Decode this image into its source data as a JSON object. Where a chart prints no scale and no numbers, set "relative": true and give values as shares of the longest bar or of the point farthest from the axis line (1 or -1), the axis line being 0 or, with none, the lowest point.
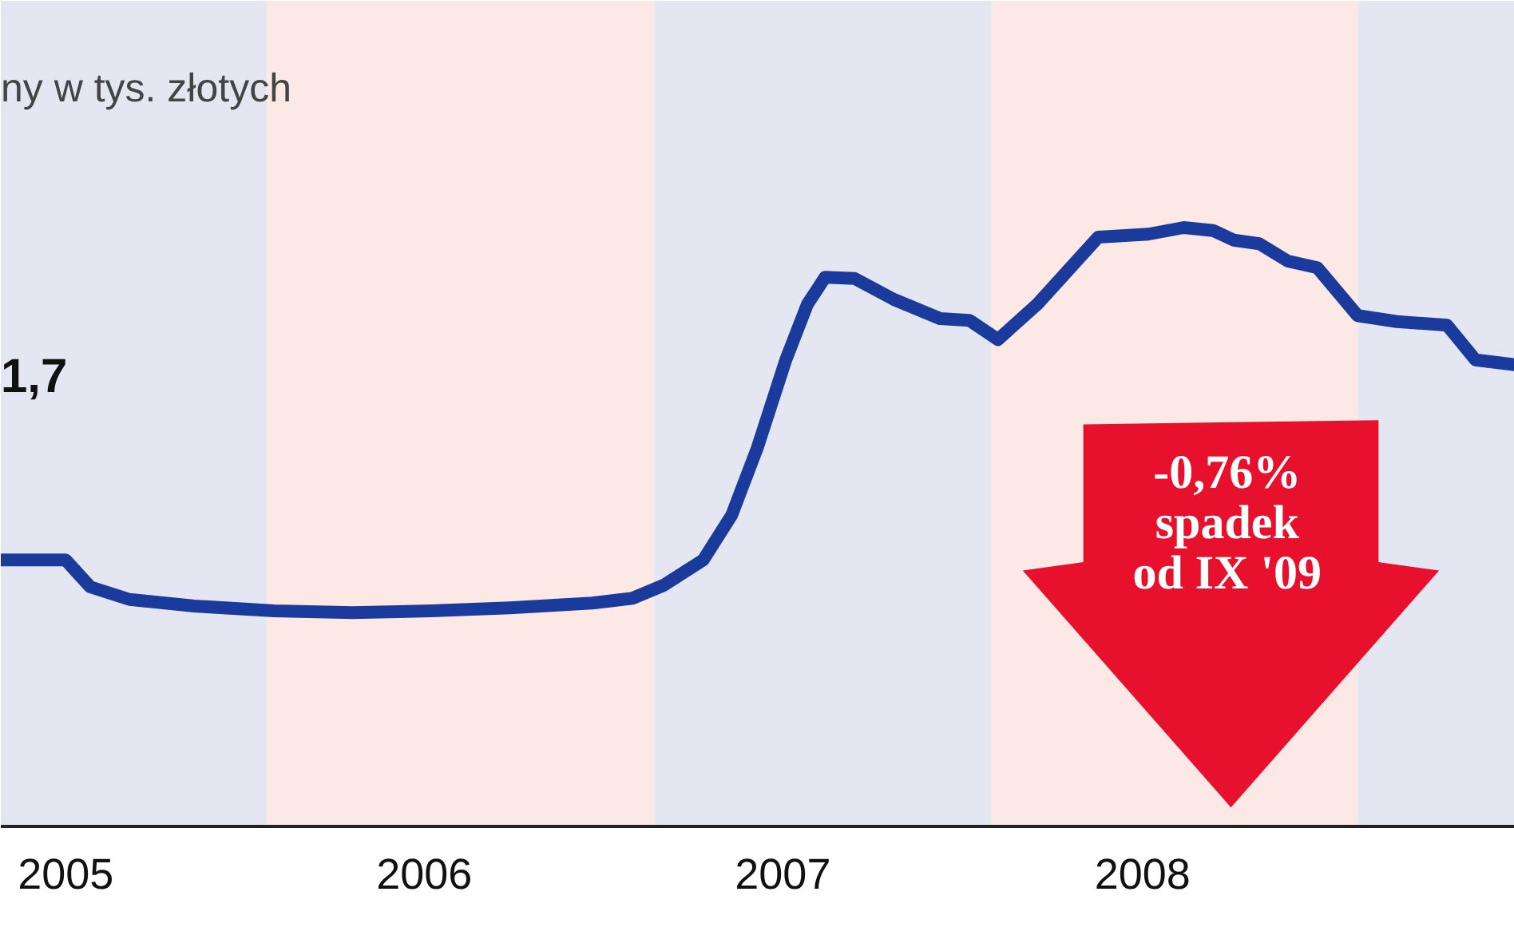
{
  "chart_data": {
    "type": "line",
    "title": "ny w tys. złotych",
    "relative": true,
    "annotations": [
      "1,7",
      "-0,76%\nspadek\nod IX '09"
    ],
    "xlim": [
      "2005-04-27",
      "2009-07-16"
    ],
    "xticks": [
      {
        "value": "2005-07-02",
        "label": "2005"
      },
      {
        "value": "2006-07-02",
        "label": "2006"
      },
      {
        "value": "2007-07-02",
        "label": "2007"
      },
      {
        "value": "2008-07-02",
        "label": "2008"
      }
    ],
    "bands": [
      {
        "axis": "x",
        "from": "2005-04-27",
        "to": "2006-01-23",
        "color": "#e4e6f2"
      },
      {
        "axis": "x",
        "from": "2006-01-23",
        "to": "2007-02-21",
        "color": "#fce8e4"
      },
      {
        "axis": "x",
        "from": "2007-02-21",
        "to": "2008-01-30",
        "color": "#e4e6f2"
      },
      {
        "axis": "x",
        "from": "2008-01-30",
        "to": "2009-02-06",
        "color": "#fce8e4"
      },
      {
        "axis": "x",
        "from": "2009-02-06",
        "to": "2009-07-16",
        "color": "#e4e6f2"
      }
    ],
    "series": [
      {
        "color": "#1a3a9c",
        "x": [
          "2005-04-27",
          "2005-07-02",
          "2005-07-27",
          "2005-09-05",
          "2005-11-10",
          "2006-01-30",
          "2006-04-20",
          "2006-07-09",
          "2006-09-27",
          "2006-12-20",
          "2007-01-30",
          "2007-03-03",
          "2007-04-12",
          "2007-05-11",
          "2007-06-06",
          "2007-07-05",
          "2007-07-27",
          "2007-08-14",
          "2007-09-13",
          "2007-10-23",
          "2007-12-09",
          "2008-01-08",
          "2008-02-06",
          "2008-03-17",
          "2008-05-18",
          "2008-07-08",
          "2008-08-13",
          "2008-09-12",
          "2008-10-03",
          "2008-10-29",
          "2008-11-27",
          "2008-12-27",
          "2009-02-06",
          "2009-03-18",
          "2009-05-08",
          "2009-06-06",
          "2009-07-16"
        ],
        "values": [
          0.445,
          0.445,
          0.4,
          0.379,
          0.368,
          0.36,
          0.357,
          0.36,
          0.365,
          0.373,
          0.381,
          0.403,
          0.445,
          0.52,
          0.632,
          0.779,
          0.872,
          0.917,
          0.915,
          0.88,
          0.848,
          0.845,
          0.813,
          0.872,
          0.984,
          0.989,
          1.0,
          0.995,
          0.979,
          0.973,
          0.944,
          0.933,
          0.853,
          0.843,
          0.837,
          0.779,
          0.771
        ]
      }
    ]
  }
}
